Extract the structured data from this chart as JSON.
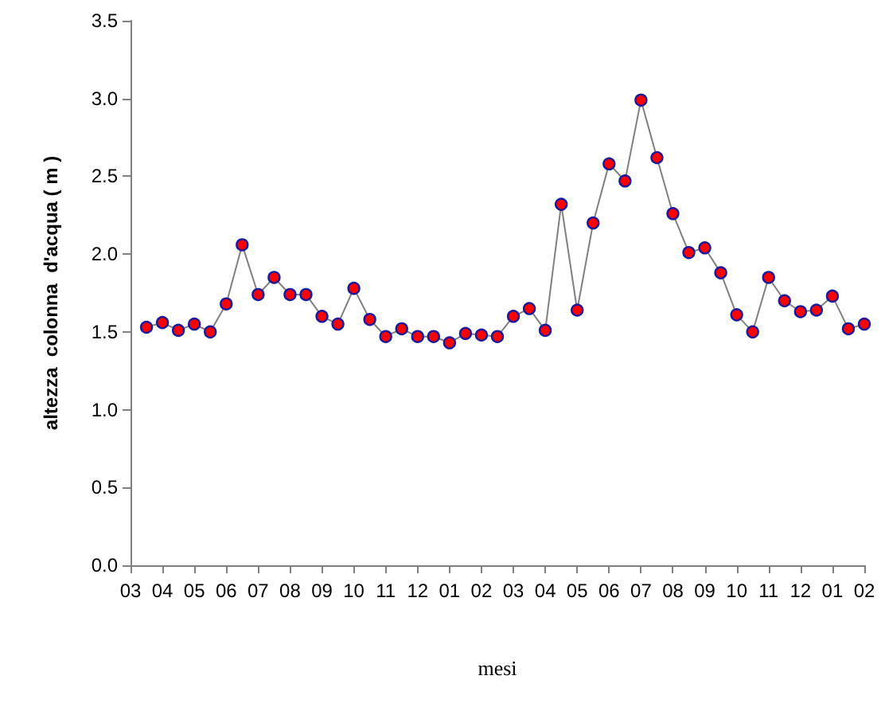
{
  "chart_data": {
    "type": "line",
    "xlabel": "mesi",
    "ylabel": "altezza  colonna  d'acqua ( m )",
    "categories": [
      "03",
      null,
      "04",
      null,
      "05",
      null,
      "06",
      null,
      "07",
      null,
      "08",
      null,
      "09",
      null,
      "10",
      null,
      "11",
      null,
      "12",
      null,
      "01",
      null,
      "02",
      null,
      "03",
      null,
      "04",
      null,
      "05",
      null,
      "06",
      null,
      "07",
      null,
      "08",
      null,
      "09",
      null,
      "10",
      null,
      "11",
      null,
      "12",
      null,
      "01",
      null,
      "02"
    ],
    "series": [
      {
        "color": "#ff0000",
        "values": [
          null,
          1.53,
          1.56,
          1.51,
          1.55,
          1.5,
          1.68,
          2.06,
          1.74,
          1.85,
          1.74,
          1.74,
          1.6,
          1.55,
          1.78,
          1.58,
          1.47,
          1.52,
          1.47,
          1.47,
          1.43,
          1.49,
          1.48,
          1.47,
          1.6,
          1.65,
          1.51,
          2.32,
          1.64,
          2.2,
          2.58,
          2.47,
          2.99,
          2.62,
          2.26,
          2.01,
          2.04,
          1.88,
          1.61,
          1.5,
          1.85,
          1.7,
          1.63,
          1.64,
          1.73,
          1.52,
          1.55
        ]
      }
    ],
    "ylim": [
      0,
      3.5
    ],
    "yticks": [
      {
        "value": 0,
        "label": "0.0"
      },
      0.5,
      {
        "value": 1,
        "label": "1.0"
      },
      1.5,
      {
        "value": 2,
        "label": "2.0"
      },
      2.5,
      {
        "value": 3,
        "label": "3.0"
      },
      3.5
    ],
    "grid": false,
    "marker": "circle",
    "line_style": "solid"
  }
}
